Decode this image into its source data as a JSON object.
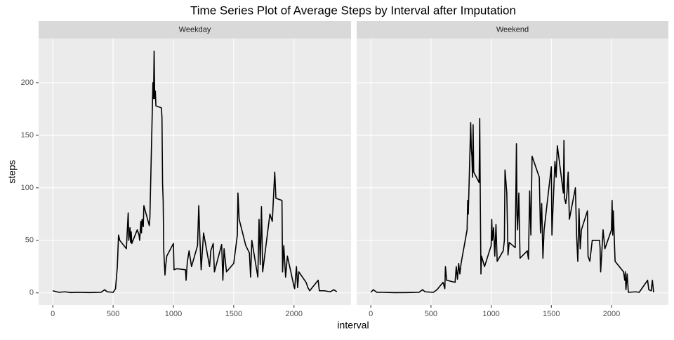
{
  "chart_data": [
    {
      "type": "line",
      "title": "Time Series Plot of Average Steps by Interval after Imputation",
      "facet": "Weekday",
      "xlabel": "interval",
      "ylabel": "steps",
      "color": "#000000",
      "grid": true,
      "xlim": [
        -117.75,
        2472.75
      ],
      "xticks": [
        0,
        500,
        1000,
        1500,
        2000
      ],
      "ylim": [
        -11.5,
        242
      ],
      "yticks": [
        0,
        50,
        100,
        150,
        200
      ],
      "x": [
        0,
        50,
        100,
        150,
        200,
        300,
        400,
        430,
        450,
        500,
        520,
        535,
        545,
        555,
        610,
        620,
        625,
        630,
        640,
        645,
        650,
        655,
        700,
        715,
        720,
        730,
        735,
        740,
        750,
        755,
        800,
        805,
        830,
        835,
        840,
        845,
        850,
        855,
        900,
        905,
        910,
        915,
        920,
        930,
        935,
        945,
        1000,
        1005,
        1030,
        1100,
        1105,
        1115,
        1130,
        1150,
        1200,
        1210,
        1220,
        1230,
        1250,
        1300,
        1310,
        1330,
        1340,
        1400,
        1410,
        1420,
        1440,
        1500,
        1530,
        1535,
        1545,
        1600,
        1630,
        1640,
        1650,
        1700,
        1710,
        1720,
        1730,
        1740,
        1800,
        1820,
        1840,
        1850,
        1900,
        1905,
        1915,
        1930,
        1945,
        2000,
        2005,
        2020,
        2030,
        2040,
        2100,
        2115,
        2130,
        2200,
        2210,
        2250,
        2300,
        2330,
        2355
      ],
      "values": [
        2,
        0.5,
        1,
        0.3,
        0.5,
        0.3,
        0.5,
        3,
        1,
        0.5,
        4,
        25,
        55,
        50,
        42,
        65,
        76,
        50,
        62,
        48,
        58,
        47,
        60,
        55,
        50,
        68,
        57,
        70,
        63,
        83,
        64,
        72,
        200,
        185,
        230,
        185,
        192,
        178,
        176,
        167,
        104,
        88,
        40,
        17,
        25,
        35,
        47,
        22,
        23,
        22,
        12,
        29,
        40,
        25,
        45,
        83,
        50,
        22,
        57,
        25,
        40,
        47,
        20,
        46,
        12,
        42,
        20,
        28,
        55,
        95,
        70,
        45,
        38,
        15,
        50,
        15,
        70,
        27,
        82,
        20,
        75,
        68,
        115,
        90,
        88,
        20,
        45,
        15,
        35,
        6,
        4,
        25,
        5,
        20,
        10,
        5,
        2,
        12,
        2,
        2,
        1,
        3,
        1
      ]
    },
    {
      "type": "line",
      "facet": "Weekend",
      "color": "#000000",
      "grid": true,
      "xlim": [
        -117.75,
        2472.75
      ],
      "xticks": [
        0,
        500,
        1000,
        1500,
        2000
      ],
      "ylim": [
        -11.5,
        242
      ],
      "yticks": [
        0,
        50,
        100,
        150,
        200
      ],
      "x": [
        0,
        20,
        50,
        100,
        200,
        300,
        400,
        430,
        450,
        520,
        550,
        600,
        615,
        620,
        630,
        700,
        710,
        720,
        730,
        740,
        750,
        800,
        805,
        810,
        830,
        835,
        840,
        845,
        850,
        855,
        900,
        905,
        910,
        915,
        920,
        945,
        1000,
        1005,
        1010,
        1020,
        1030,
        1040,
        1050,
        1100,
        1110,
        1115,
        1120,
        1130,
        1140,
        1150,
        1200,
        1210,
        1215,
        1220,
        1230,
        1240,
        1300,
        1310,
        1320,
        1330,
        1340,
        1400,
        1410,
        1420,
        1430,
        1440,
        1500,
        1505,
        1510,
        1530,
        1540,
        1550,
        1600,
        1605,
        1610,
        1620,
        1630,
        1640,
        1650,
        1700,
        1710,
        1720,
        1730,
        1740,
        1750,
        1800,
        1805,
        1820,
        1840,
        1900,
        1905,
        1910,
        1920,
        1930,
        1945,
        2000,
        2005,
        2010,
        2015,
        2030,
        2100,
        2110,
        2115,
        2120,
        2130,
        2140,
        2200,
        2230,
        2300,
        2310,
        2330,
        2340,
        2350
      ],
      "values": [
        0.5,
        3,
        0.5,
        0.5,
        0.2,
        0.3,
        0.5,
        3,
        1,
        0.5,
        3,
        10,
        4,
        25,
        12,
        10,
        25,
        13,
        28,
        18,
        28,
        60,
        88,
        75,
        162,
        137,
        130,
        110,
        160,
        115,
        105,
        166,
        85,
        18,
        35,
        25,
        45,
        70,
        50,
        62,
        35,
        65,
        30,
        40,
        50,
        117,
        110,
        95,
        36,
        48,
        43,
        142,
        75,
        60,
        95,
        33,
        40,
        32,
        97,
        55,
        130,
        110,
        57,
        85,
        33,
        60,
        120,
        55,
        70,
        125,
        110,
        140,
        95,
        145,
        90,
        85,
        95,
        115,
        70,
        100,
        55,
        30,
        80,
        42,
        60,
        78,
        35,
        30,
        50,
        50,
        43,
        20,
        40,
        60,
        42,
        60,
        88,
        55,
        78,
        30,
        20,
        12,
        20,
        3,
        18,
        0.5,
        1,
        0.5,
        12,
        3,
        2,
        12,
        0.5
      ]
    }
  ]
}
